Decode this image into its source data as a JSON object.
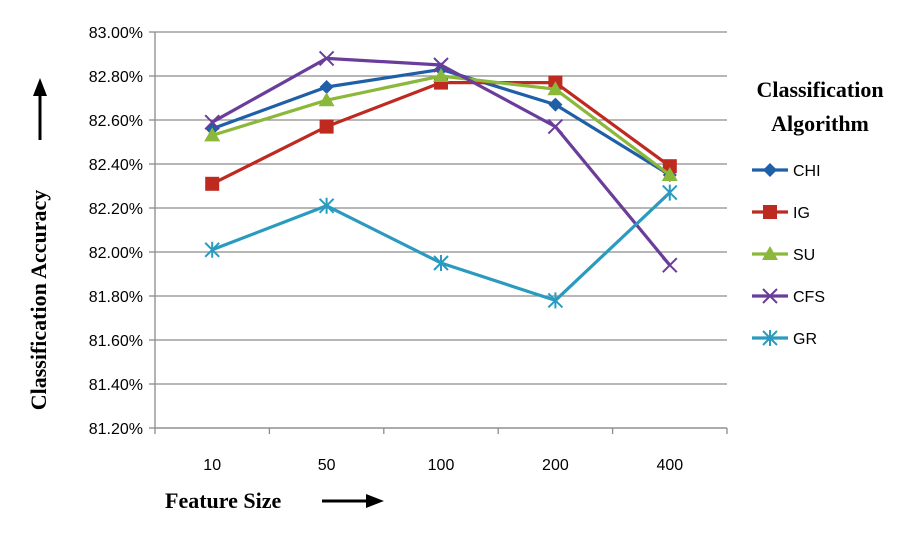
{
  "chart_data": {
    "type": "line",
    "categories": [
      "10",
      "50",
      "100",
      "200",
      "400"
    ],
    "xlabel": "Feature Size",
    "ylabel": "Classification Accuracy",
    "ylim": [
      81.2,
      83.0
    ],
    "yticks": [
      "81.20%",
      "81.40%",
      "81.60%",
      "81.80%",
      "82.00%",
      "82.20%",
      "82.40%",
      "82.60%",
      "82.80%",
      "83.00%"
    ],
    "ytick_values": [
      81.2,
      81.4,
      81.6,
      81.8,
      82.0,
      82.2,
      82.4,
      82.6,
      82.8,
      83.0
    ],
    "grid": true,
    "legend_title": [
      "Classification",
      "Algorithm"
    ],
    "legend_position": "right",
    "series": [
      {
        "name": "CHI",
        "values": [
          82.56,
          82.75,
          82.83,
          82.67,
          82.35
        ],
        "color": "#1f5fa8",
        "marker": "diamond"
      },
      {
        "name": "IG",
        "values": [
          82.31,
          82.57,
          82.77,
          82.77,
          82.39
        ],
        "color": "#be2a20",
        "marker": "square"
      },
      {
        "name": "SU",
        "values": [
          82.53,
          82.69,
          82.8,
          82.74,
          82.35
        ],
        "color": "#8bb83a",
        "marker": "triangle"
      },
      {
        "name": "CFS",
        "values": [
          82.59,
          82.88,
          82.85,
          82.57,
          81.94
        ],
        "color": "#6a3d9a",
        "marker": "x"
      },
      {
        "name": "GR",
        "values": [
          82.01,
          82.21,
          81.95,
          81.78,
          82.27
        ],
        "color": "#2a9bbf",
        "marker": "star"
      }
    ]
  }
}
